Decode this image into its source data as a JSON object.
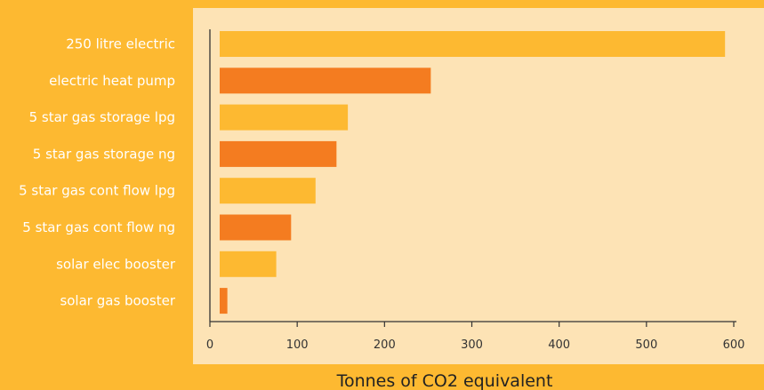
{
  "chart_data": {
    "type": "bar",
    "orientation": "horizontal",
    "categories": [
      "250 litre electric",
      "electric heat pump",
      "5 star gas storage lpg",
      "5 star gas storage ng",
      "5 star gas cont flow lpg",
      "5 star gas cont flow ng",
      "solar elec booster",
      "solar gas booster"
    ],
    "values": [
      590,
      253,
      158,
      145,
      121,
      93,
      76,
      20
    ],
    "xlabel": "Tonnes of CO2 equivalent",
    "ylabel": "",
    "title": "",
    "xlim": [
      0,
      600
    ],
    "xticks": [
      0,
      100,
      200,
      300,
      400,
      500,
      600
    ],
    "grid": false,
    "legend": "none",
    "colors": {
      "background": "#FDB931",
      "plot_background": "#FDE3B5",
      "bar_light": "#FDB931",
      "bar_dark": "#F47C20",
      "axis": "#333333",
      "category_text": "#FFFFFF"
    }
  }
}
